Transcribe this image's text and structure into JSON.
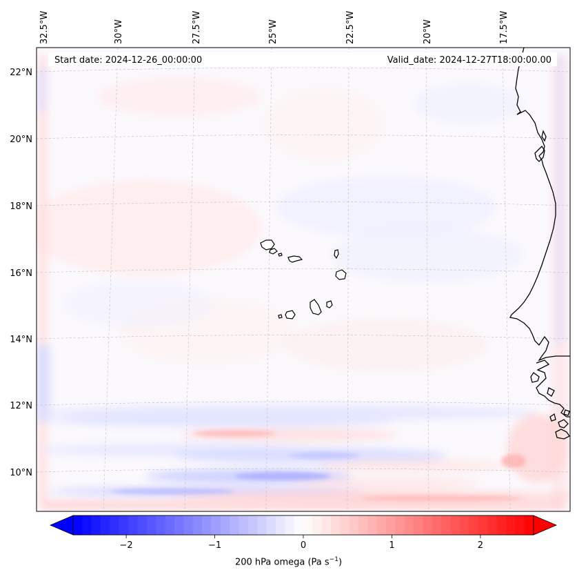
{
  "map": {
    "start_date": "Start date: 2024-12-26_00:00:00",
    "valid_date": "Valid_date: 2024-12-27T18:00:00.00",
    "lon_labels": [
      "32.5°W",
      "30°W",
      "27.5°W",
      "25°W",
      "22.5°W",
      "20°W",
      "17.5°W"
    ],
    "lat_labels": [
      "22°N",
      "20°N",
      "18°N",
      "16°N",
      "14°N",
      "12°N",
      "10°N"
    ],
    "islands": [
      "Santo Antão",
      "São Vicente",
      "Santa Luzia",
      "São Nicolau",
      "Sal",
      "Boa Vista",
      "Maio",
      "Santiago",
      "Fogo",
      "Brava"
    ],
    "coastline": "West Africa"
  },
  "colorbar": {
    "label_prefix": "200 hPa omega (Pa s",
    "label_exp": "−1",
    "label_suffix": ")",
    "ticks": [
      "−2",
      "−1",
      "0",
      "1",
      "2"
    ],
    "tick_values": [
      -2,
      -1,
      0,
      1,
      2
    ],
    "range": [
      -2.6,
      2.6
    ],
    "colormap": "bwr",
    "color_low": "#0000ff",
    "color_mid": "#ffffff",
    "color_high": "#ff0000"
  }
}
